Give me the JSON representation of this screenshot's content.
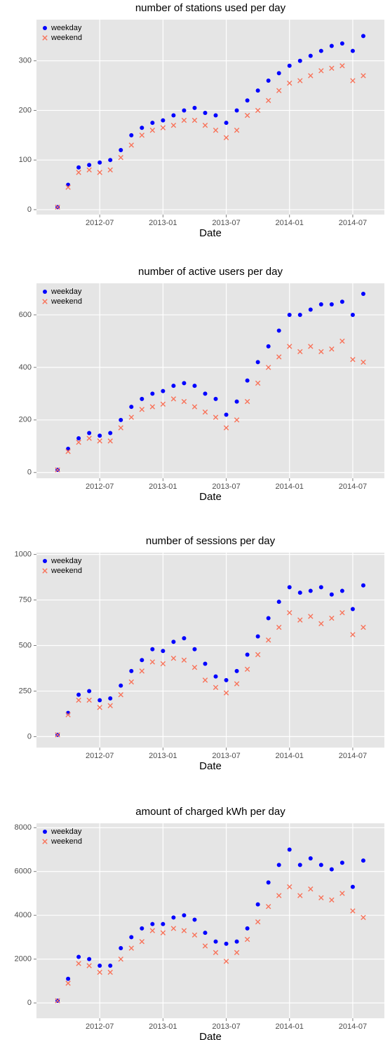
{
  "chart_data": [
    {
      "type": "scatter",
      "title": "number of stations used per day",
      "xlabel": "Date",
      "x": [
        "2012-03",
        "2012-04",
        "2012-05",
        "2012-06",
        "2012-07",
        "2012-08",
        "2012-09",
        "2012-10",
        "2012-11",
        "2012-12",
        "2013-01",
        "2013-02",
        "2013-03",
        "2013-04",
        "2013-05",
        "2013-06",
        "2013-07",
        "2013-08",
        "2013-09",
        "2013-10",
        "2013-11",
        "2013-12",
        "2014-01",
        "2014-02",
        "2014-03",
        "2014-04",
        "2014-05",
        "2014-06",
        "2014-07",
        "2014-08"
      ],
      "series": [
        {
          "name": "weekday",
          "color": "#0000ff",
          "marker": "circle",
          "values": [
            5,
            50,
            85,
            90,
            95,
            100,
            120,
            150,
            165,
            175,
            180,
            190,
            200,
            205,
            195,
            190,
            175,
            200,
            220,
            240,
            260,
            275,
            290,
            300,
            310,
            320,
            330,
            335,
            320,
            350
          ]
        },
        {
          "name": "weekend",
          "color": "#f8735a",
          "marker": "x",
          "values": [
            5,
            45,
            75,
            80,
            75,
            80,
            105,
            130,
            150,
            160,
            165,
            170,
            180,
            180,
            170,
            160,
            145,
            160,
            190,
            200,
            220,
            240,
            255,
            260,
            270,
            280,
            285,
            290,
            260,
            270
          ]
        }
      ],
      "xlim": [
        "2012-01",
        "2014-10"
      ],
      "xticks": [
        "2012-07",
        "2013-01",
        "2013-07",
        "2014-01",
        "2014-07"
      ],
      "ylim": [
        -10,
        383
      ],
      "yticks": [
        0,
        100,
        200,
        300
      ],
      "grid": true,
      "legend": "top-left"
    },
    {
      "type": "scatter",
      "title": "number of active users per day",
      "xlabel": "Date",
      "x": [
        "2012-03",
        "2012-04",
        "2012-05",
        "2012-06",
        "2012-07",
        "2012-08",
        "2012-09",
        "2012-10",
        "2012-11",
        "2012-12",
        "2013-01",
        "2013-02",
        "2013-03",
        "2013-04",
        "2013-05",
        "2013-06",
        "2013-07",
        "2013-08",
        "2013-09",
        "2013-10",
        "2013-11",
        "2013-12",
        "2014-01",
        "2014-02",
        "2014-03",
        "2014-04",
        "2014-05",
        "2014-06",
        "2014-07",
        "2014-08"
      ],
      "series": [
        {
          "name": "weekday",
          "color": "#0000ff",
          "marker": "circle",
          "values": [
            10,
            90,
            130,
            150,
            140,
            150,
            200,
            250,
            280,
            300,
            310,
            330,
            340,
            330,
            300,
            280,
            220,
            270,
            350,
            420,
            480,
            540,
            600,
            600,
            620,
            640,
            640,
            650,
            600,
            680
          ]
        },
        {
          "name": "weekend",
          "color": "#f8735a",
          "marker": "x",
          "values": [
            10,
            80,
            115,
            130,
            120,
            120,
            170,
            210,
            240,
            250,
            260,
            280,
            270,
            250,
            230,
            210,
            170,
            200,
            270,
            340,
            400,
            440,
            480,
            460,
            480,
            460,
            470,
            500,
            430,
            420
          ]
        }
      ],
      "xlim": [
        "2012-01",
        "2014-10"
      ],
      "xticks": [
        "2012-07",
        "2013-01",
        "2013-07",
        "2014-01",
        "2014-07"
      ],
      "ylim": [
        -22,
        720
      ],
      "yticks": [
        0,
        200,
        400,
        600
      ],
      "grid": true,
      "legend": "top-left"
    },
    {
      "type": "scatter",
      "title": "number of sessions per day",
      "xlabel": "Date",
      "x": [
        "2012-03",
        "2012-04",
        "2012-05",
        "2012-06",
        "2012-07",
        "2012-08",
        "2012-09",
        "2012-10",
        "2012-11",
        "2012-12",
        "2013-01",
        "2013-02",
        "2013-03",
        "2013-04",
        "2013-05",
        "2013-06",
        "2013-07",
        "2013-08",
        "2013-09",
        "2013-10",
        "2013-11",
        "2013-12",
        "2014-01",
        "2014-02",
        "2014-03",
        "2014-04",
        "2014-05",
        "2014-06",
        "2014-07",
        "2014-08"
      ],
      "series": [
        {
          "name": "weekday",
          "color": "#0000ff",
          "marker": "circle",
          "values": [
            10,
            130,
            230,
            250,
            200,
            210,
            280,
            360,
            420,
            480,
            470,
            520,
            540,
            480,
            400,
            330,
            310,
            360,
            450,
            550,
            650,
            740,
            820,
            790,
            800,
            820,
            780,
            800,
            700,
            830
          ]
        },
        {
          "name": "weekend",
          "color": "#f8735a",
          "marker": "x",
          "values": [
            10,
            120,
            200,
            200,
            160,
            170,
            230,
            300,
            360,
            410,
            400,
            430,
            420,
            380,
            310,
            270,
            240,
            290,
            370,
            450,
            530,
            600,
            680,
            640,
            660,
            620,
            650,
            680,
            560,
            600
          ]
        }
      ],
      "xlim": [
        "2012-01",
        "2014-10"
      ],
      "xticks": [
        "2012-07",
        "2013-01",
        "2013-07",
        "2014-01",
        "2014-07"
      ],
      "ylim": [
        -60,
        1010
      ],
      "yticks": [
        0,
        250,
        500,
        750,
        1000
      ],
      "grid": true,
      "legend": "top-left"
    },
    {
      "type": "scatter",
      "title": "amount of charged kWh per day",
      "xlabel": "Date",
      "x": [
        "2012-03",
        "2012-04",
        "2012-05",
        "2012-06",
        "2012-07",
        "2012-08",
        "2012-09",
        "2012-10",
        "2012-11",
        "2012-12",
        "2013-01",
        "2013-02",
        "2013-03",
        "2013-04",
        "2013-05",
        "2013-06",
        "2013-07",
        "2013-08",
        "2013-09",
        "2013-10",
        "2013-11",
        "2013-12",
        "2014-01",
        "2014-02",
        "2014-03",
        "2014-04",
        "2014-05",
        "2014-06",
        "2014-07",
        "2014-08"
      ],
      "series": [
        {
          "name": "weekday",
          "color": "#0000ff",
          "marker": "circle",
          "values": [
            100,
            1100,
            2100,
            2000,
            1700,
            1700,
            2500,
            3000,
            3400,
            3600,
            3600,
            3900,
            4000,
            3800,
            3200,
            2800,
            2700,
            2800,
            3400,
            4500,
            5500,
            6300,
            7000,
            6300,
            6600,
            6300,
            6100,
            6400,
            5300,
            6500
          ]
        },
        {
          "name": "weekend",
          "color": "#f8735a",
          "marker": "x",
          "values": [
            100,
            900,
            1800,
            1700,
            1400,
            1400,
            2000,
            2500,
            2800,
            3300,
            3200,
            3400,
            3300,
            3100,
            2600,
            2300,
            1900,
            2300,
            2900,
            3700,
            4400,
            4900,
            5300,
            4900,
            5200,
            4800,
            4700,
            5000,
            4200,
            3900
          ]
        }
      ],
      "xlim": [
        "2012-01",
        "2014-10"
      ],
      "xticks": [
        "2012-07",
        "2013-01",
        "2013-07",
        "2014-01",
        "2014-07"
      ],
      "ylim": [
        -700,
        8200
      ],
      "yticks": [
        0,
        2000,
        4000,
        6000,
        8000
      ],
      "grid": true,
      "legend": "top-left"
    }
  ]
}
